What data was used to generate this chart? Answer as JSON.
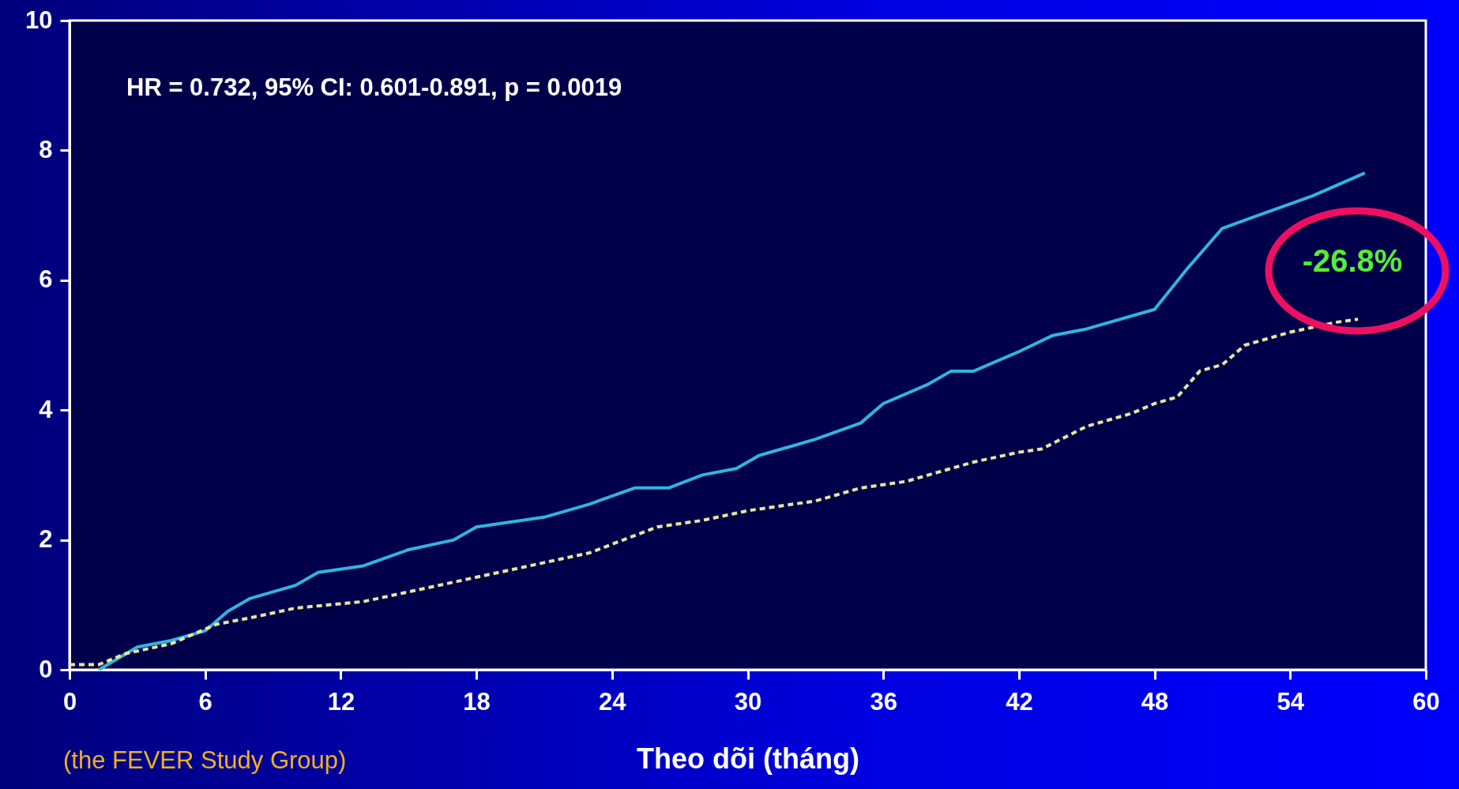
{
  "chart_data": {
    "type": "line",
    "xlabel": "Theo dõi (tháng)",
    "annotations": [
      "HR = 0.732, 95% CI: 0.601-0.891, p = 0.0019",
      "-26.8%",
      "(the FEVER Study Group)"
    ],
    "xlim": [
      0,
      60
    ],
    "xticks": [
      0,
      6,
      12,
      18,
      24,
      30,
      36,
      42,
      48,
      54,
      60
    ],
    "ylim": [
      0,
      10
    ],
    "yticks": [
      0,
      2,
      4,
      6,
      8,
      10
    ],
    "grid": false,
    "marker": "none",
    "series": [
      {
        "color": "#2fb5e0",
        "line_style": "solid",
        "x": [
          1.3,
          3,
          4.5,
          6,
          7,
          8,
          10,
          11,
          13,
          15,
          17,
          18,
          21,
          23,
          25,
          26.5,
          28,
          29.5,
          30.5,
          33,
          35,
          36,
          38,
          39,
          40,
          42,
          43.5,
          45,
          48,
          49.5,
          51,
          53,
          55,
          57.3
        ],
        "values": [
          0,
          0.35,
          0.45,
          0.6,
          0.9,
          1.1,
          1.3,
          1.5,
          1.6,
          1.85,
          2,
          2.2,
          2.35,
          2.55,
          2.8,
          2.8,
          3,
          3.1,
          3.3,
          3.55,
          3.8,
          4.1,
          4.4,
          4.6,
          4.6,
          4.9,
          5.15,
          5.25,
          5.55,
          6.2,
          6.8,
          7.05,
          7.3,
          7.65
        ]
      },
      {
        "color": "#e6e6a0",
        "line_style": "dashed",
        "x": [
          0,
          1.3,
          2.5,
          4.5,
          6.5,
          8,
          10,
          13,
          15,
          17,
          19,
          21,
          23,
          24.5,
          26,
          28,
          30,
          33,
          35,
          37,
          38,
          40,
          42,
          43,
          45,
          47,
          48,
          49,
          50,
          51,
          52,
          54,
          56,
          57
        ],
        "values": [
          0.08,
          0.08,
          0.25,
          0.4,
          0.7,
          0.8,
          0.95,
          1.05,
          1.2,
          1.35,
          1.5,
          1.65,
          1.8,
          2,
          2.2,
          2.3,
          2.45,
          2.6,
          2.8,
          2.9,
          3,
          3.2,
          3.35,
          3.4,
          3.75,
          3.95,
          4.1,
          4.2,
          4.6,
          4.7,
          5,
          5.2,
          5.35,
          5.4
        ]
      }
    ]
  }
}
